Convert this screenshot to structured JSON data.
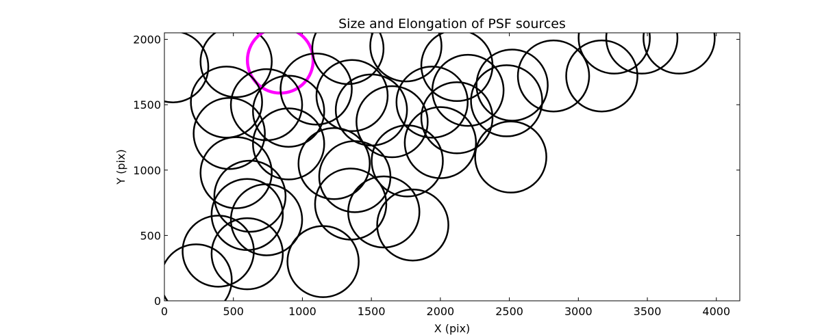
{
  "chart_data": {
    "type": "scatter",
    "title": "Size and Elongation of PSF sources",
    "xlabel": "X (pix)",
    "ylabel": "Y (pix)",
    "xlim": [
      0,
      4170
    ],
    "ylim": [
      0,
      2050
    ],
    "xticks": [
      0,
      500,
      1000,
      1500,
      2000,
      2500,
      3000,
      3500,
      4000
    ],
    "yticks": [
      0,
      500,
      1000,
      1500,
      2000
    ],
    "marker": "circle (size encodes PSF size, shape encodes elongation)",
    "default_color": "#000000",
    "highlight_color": "#ff00ff",
    "points": [
      {
        "x": 60,
        "y": 1790
      },
      {
        "x": 520,
        "y": 1830
      },
      {
        "x": 840,
        "y": 1840,
        "highlight": true
      },
      {
        "x": 1330,
        "y": 1930
      },
      {
        "x": 1750,
        "y": 1950
      },
      {
        "x": 2120,
        "y": 1800
      },
      {
        "x": 2200,
        "y": 1610
      },
      {
        "x": 2520,
        "y": 1650
      },
      {
        "x": 2820,
        "y": 1720
      },
      {
        "x": 3170,
        "y": 1720
      },
      {
        "x": 3260,
        "y": 2010
      },
      {
        "x": 3460,
        "y": 2010
      },
      {
        "x": 3730,
        "y": 2010
      },
      {
        "x": 450,
        "y": 1520
      },
      {
        "x": 740,
        "y": 1500
      },
      {
        "x": 900,
        "y": 1450
      },
      {
        "x": 1100,
        "y": 1620
      },
      {
        "x": 1360,
        "y": 1570
      },
      {
        "x": 1500,
        "y": 1460
      },
      {
        "x": 1650,
        "y": 1370
      },
      {
        "x": 1940,
        "y": 1520
      },
      {
        "x": 2120,
        "y": 1400
      },
      {
        "x": 2480,
        "y": 1530
      },
      {
        "x": 470,
        "y": 1280
      },
      {
        "x": 900,
        "y": 1200
      },
      {
        "x": 1230,
        "y": 1050
      },
      {
        "x": 1380,
        "y": 950
      },
      {
        "x": 1760,
        "y": 1070
      },
      {
        "x": 2000,
        "y": 1210
      },
      {
        "x": 2510,
        "y": 1100
      },
      {
        "x": 520,
        "y": 980
      },
      {
        "x": 620,
        "y": 800
      },
      {
        "x": 600,
        "y": 660
      },
      {
        "x": 740,
        "y": 620
      },
      {
        "x": 1350,
        "y": 740
      },
      {
        "x": 1590,
        "y": 680
      },
      {
        "x": 1800,
        "y": 580
      },
      {
        "x": 390,
        "y": 380
      },
      {
        "x": 600,
        "y": 360
      },
      {
        "x": 1150,
        "y": 300
      },
      {
        "x": 230,
        "y": 160
      }
    ]
  }
}
